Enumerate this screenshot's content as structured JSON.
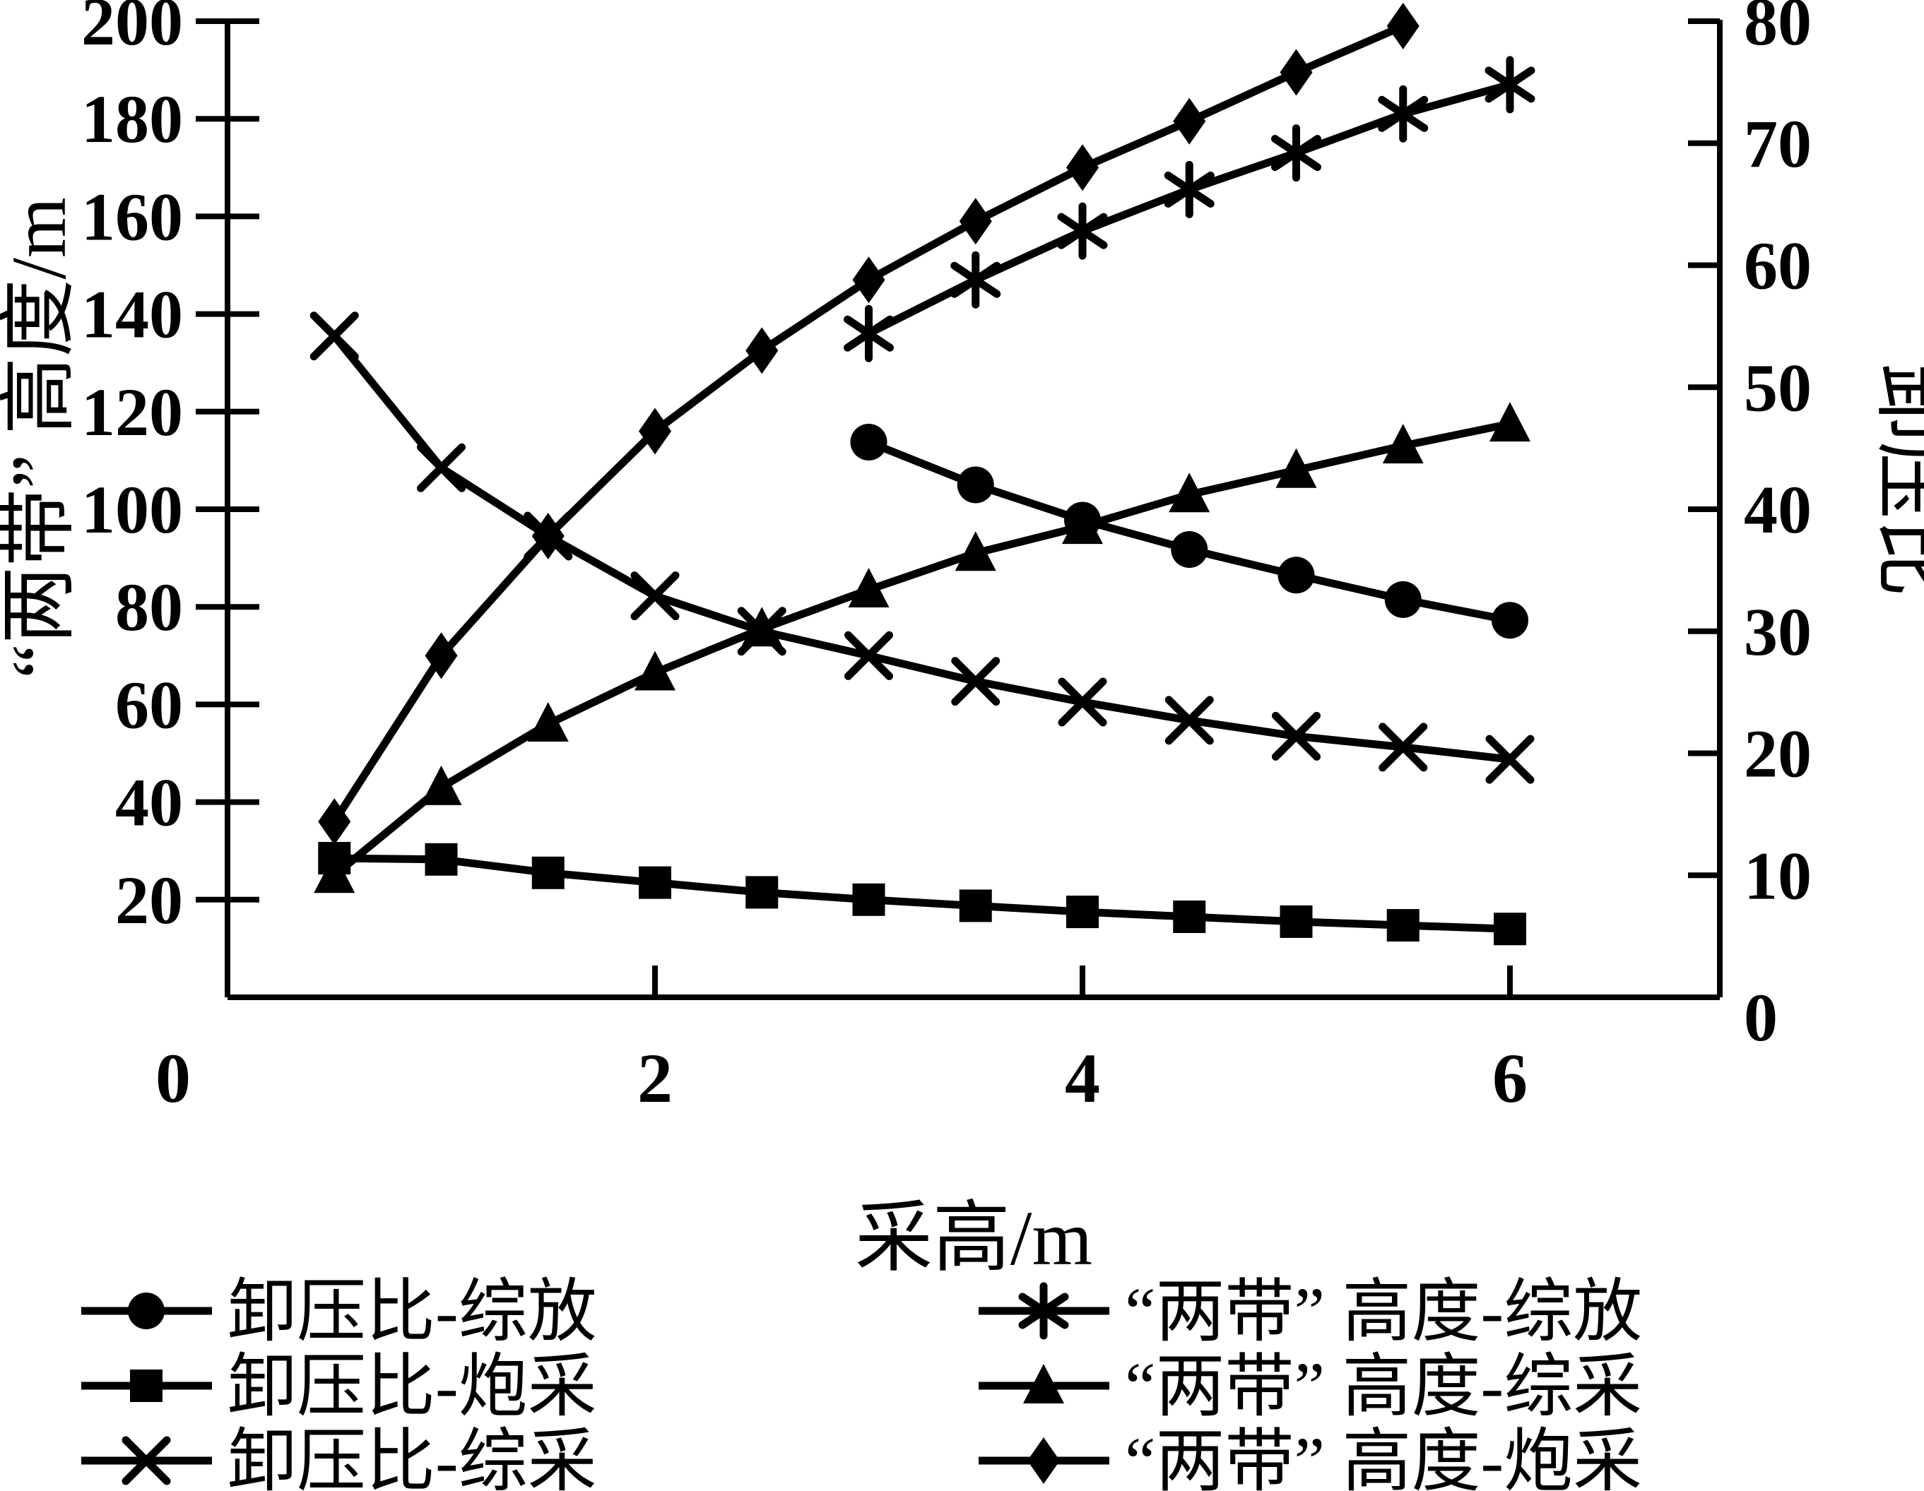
{
  "colors": {
    "foreground": "#000000",
    "background": "#ffffff"
  },
  "chart_data": {
    "type": "line",
    "title": "",
    "grid": false,
    "legend_position": "bottom-two-columns",
    "x_axis": {
      "label": "采高/m",
      "tick_labels": [
        "0",
        "2",
        "4",
        "6"
      ],
      "tick_values": [
        0,
        2,
        4,
        6
      ],
      "range": [
        0,
        7
      ]
    },
    "y_left": {
      "label": "“两带” 高度/m",
      "tick_values": [
        20,
        40,
        60,
        80,
        100,
        120,
        140,
        160,
        180,
        200
      ],
      "range": [
        0,
        200
      ]
    },
    "y_right": {
      "label": "卸压比",
      "tick_values": [
        0,
        10,
        20,
        30,
        40,
        50,
        60,
        70,
        80
      ],
      "range": [
        0,
        80
      ]
    },
    "series": [
      {
        "id": "relief_zongfang",
        "name": "卸压比-综放",
        "axis": "right",
        "marker": "circle",
        "x": [
          3,
          3.5,
          4,
          4.5,
          5,
          5.5,
          6
        ],
        "y": [
          45.5,
          42.0,
          39.1,
          36.7,
          34.6,
          32.6,
          30.9
        ]
      },
      {
        "id": "relief_paocai",
        "name": "卸压比-炮采",
        "axis": "right",
        "marker": "square",
        "x": [
          0.5,
          1,
          1.5,
          2,
          2.5,
          3,
          3.5,
          4,
          4.5,
          5,
          5.5,
          6
        ],
        "y": [
          11.4,
          11.3,
          10.2,
          9.4,
          8.6,
          8.0,
          7.5,
          7.0,
          6.6,
          6.2,
          5.9,
          5.6
        ]
      },
      {
        "id": "relief_zongcai",
        "name": "卸压比-综采",
        "axis": "right",
        "marker": "xcross",
        "x": [
          0.5,
          1,
          1.5,
          2,
          2.5,
          3,
          3.5,
          4,
          4.5,
          5,
          5.5,
          6
        ],
        "y": [
          54.2,
          43.4,
          37.8,
          32.9,
          30.0,
          28.0,
          25.9,
          24.2,
          22.7,
          21.4,
          20.5,
          19.5
        ]
      },
      {
        "id": "height_zongfang",
        "name": "“两带” 高度-综放",
        "axis": "left",
        "marker": "asterisk",
        "x": [
          3,
          3.5,
          4,
          4.5,
          5,
          5.5,
          6
        ],
        "y": [
          136,
          147,
          157,
          165.5,
          173,
          181,
          187
        ]
      },
      {
        "id": "height_zongcai",
        "name": "“两带” 高度-综采",
        "axis": "left",
        "marker": "triangle",
        "x": [
          0.5,
          1,
          1.5,
          2,
          2.5,
          3,
          3.5,
          4,
          4.5,
          5,
          5.5,
          6
        ],
        "y": [
          25,
          43,
          56,
          66.5,
          75.5,
          83.5,
          91,
          96.5,
          103,
          108,
          113,
          117.5
        ]
      },
      {
        "id": "height_paocai",
        "name": "“两带” 高度-炮采",
        "axis": "left",
        "marker": "diamond",
        "x": [
          0.5,
          1,
          1.5,
          2,
          2.5,
          3,
          3.5,
          4,
          4.5,
          5,
          5.5
        ],
        "y": [
          36,
          70,
          94.5,
          116,
          132.5,
          147,
          159,
          170,
          179.5,
          189.5,
          199
        ]
      }
    ],
    "legend_columns": [
      [
        "relief_zongfang",
        "relief_paocai",
        "relief_zongcai"
      ],
      [
        "height_zongfang",
        "height_zongcai",
        "height_paocai"
      ]
    ]
  }
}
